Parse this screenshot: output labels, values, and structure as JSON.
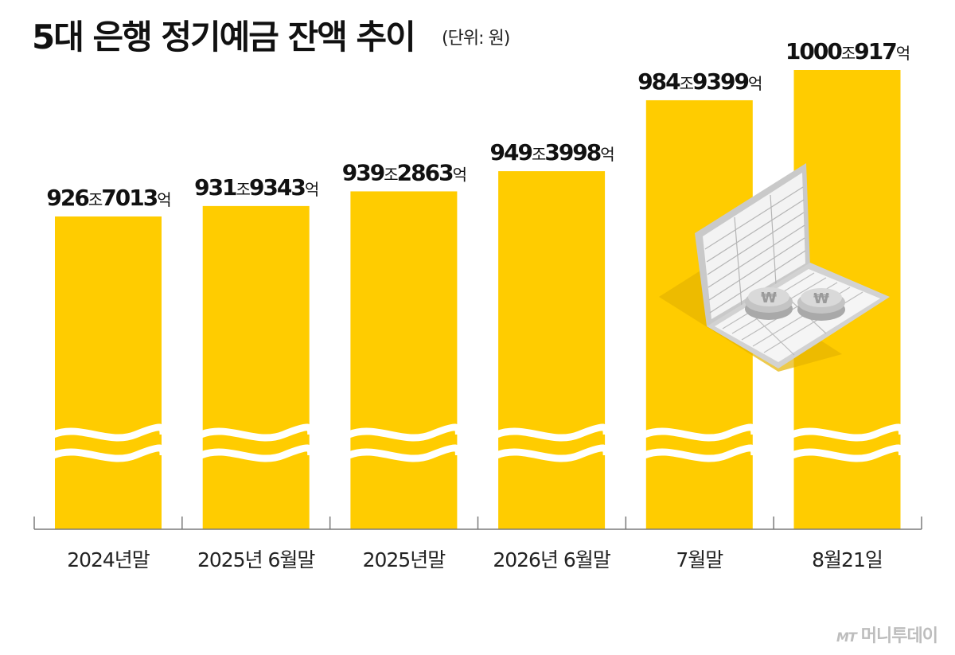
{
  "title": "5대 은행 정기예금 잔액 추이",
  "unit_note": "(단위: 원)",
  "watermark": {
    "logo_text": "MT",
    "brand": "머니투데이"
  },
  "colors": {
    "bar": "#FFCC00",
    "axis": "#7a7a7a",
    "text": "#111111",
    "watermark": "#bdbdbd"
  },
  "illustration": {
    "icon": "laptop-with-won-coins-icon"
  },
  "chart_data": {
    "type": "bar",
    "title": "5대 은행 정기예금 잔액 추이",
    "unit": "(단위: 원)",
    "axis_break": true,
    "grid": false,
    "ylim": [
      900,
      1010
    ],
    "categories": [
      "2024년말",
      "2025년 6월말",
      "2025년말",
      "2026년 6월말",
      "7월말",
      "8월21일"
    ],
    "values": [
      926.7013,
      931.9343,
      939.2863,
      949.3998,
      984.9399,
      1000.0917
    ],
    "labels": [
      {
        "major": "926",
        "unit1": "조",
        "minor": "7013",
        "unit2": "억"
      },
      {
        "major": "931",
        "unit1": "조",
        "minor": "9343",
        "unit2": "억"
      },
      {
        "major": "939",
        "unit1": "조",
        "minor": "2863",
        "unit2": "억"
      },
      {
        "major": "949",
        "unit1": "조",
        "minor": "3998",
        "unit2": "억"
      },
      {
        "major": "984",
        "unit1": "조",
        "minor": "9399",
        "unit2": "억"
      },
      {
        "major": "1000",
        "unit1": "조",
        "minor": "917",
        "unit2": "억"
      }
    ],
    "value_unit": "조원"
  }
}
